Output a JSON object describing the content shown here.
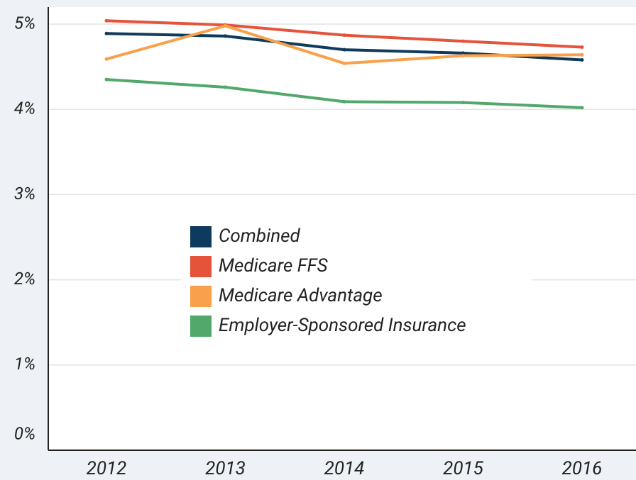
{
  "chart_data": {
    "type": "line",
    "categories": [
      "2012",
      "2013",
      "2014",
      "2015",
      "2016"
    ],
    "series": [
      {
        "name": "Combined",
        "color": "#0e3a5e",
        "values": [
          4.89,
          4.86,
          4.7,
          4.66,
          4.58
        ]
      },
      {
        "name": "Medicare FFS",
        "color": "#e4533a",
        "values": [
          5.04,
          4.99,
          4.87,
          4.8,
          4.73
        ]
      },
      {
        "name": "Medicare Advantage",
        "color": "#f9a04a",
        "values": [
          4.59,
          4.98,
          4.54,
          4.63,
          4.64
        ]
      },
      {
        "name": "Employer-Sponsored Insurance",
        "color": "#52a86a",
        "values": [
          4.35,
          4.26,
          4.09,
          4.08,
          4.02
        ]
      }
    ],
    "ylim": [
      0,
      5.2
    ],
    "yticks": [
      {
        "value": 0,
        "label": "0%"
      },
      {
        "value": 1,
        "label": "1%"
      },
      {
        "value": 2,
        "label": "2%"
      },
      {
        "value": 3,
        "label": "3%"
      },
      {
        "value": 4,
        "label": "4%"
      },
      {
        "value": 5,
        "label": "5%"
      }
    ],
    "grid": true
  }
}
